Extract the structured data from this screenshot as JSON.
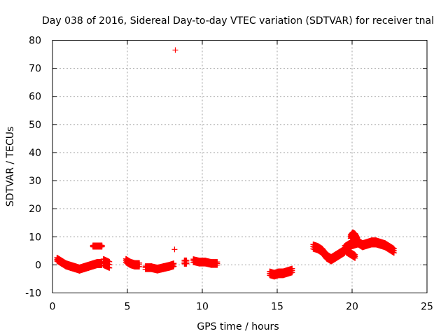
{
  "chart_data": {
    "type": "scatter",
    "title": "Day 038 of 2016, Sidereal Day-to-day VTEC variation (SDTVAR) for receiver tnal",
    "xlabel": "GPS time / hours",
    "ylabel": "SDTVAR / TECUs",
    "xlim": [
      0,
      25
    ],
    "ylim": [
      -10,
      80
    ],
    "xticks": [
      "0",
      "5",
      "10",
      "15",
      "20",
      "25"
    ],
    "yticks": [
      "-10",
      "0",
      "10",
      "20",
      "30",
      "40",
      "50",
      "60",
      "70",
      "80"
    ],
    "grid": true,
    "marker": "+",
    "color": "#ff0000",
    "outliers": [
      {
        "x": 8.2,
        "y": 76.5
      },
      {
        "x": 8.15,
        "y": 5.5
      }
    ],
    "segments": [
      {
        "x": [
          0.3,
          0.6,
          0.9,
          1.2,
          1.5,
          1.8,
          2.1,
          2.4,
          2.7,
          3.0,
          3.3
        ],
        "y": [
          2,
          1,
          0,
          -0.5,
          -1,
          -1.5,
          -1,
          -0.5,
          0,
          0.5,
          0.5
        ],
        "spread": 1.2
      },
      {
        "x": [
          2.7,
          2.9,
          3.1,
          3.3
        ],
        "y": [
          6.7,
          6.7,
          6.7,
          6.7
        ],
        "spread": 0.5
      },
      {
        "x": [
          3.4,
          3.6,
          3.8
        ],
        "y": [
          1,
          0.5,
          0
        ],
        "spread": 2.2
      },
      {
        "x": [
          4.9,
          5.2,
          5.5,
          5.8
        ],
        "y": [
          1.5,
          0.5,
          0,
          0
        ],
        "spread": 1.3
      },
      {
        "x": [
          6.2,
          6.6,
          7.0,
          7.4,
          7.8,
          8.1
        ],
        "y": [
          -1,
          -1,
          -1.5,
          -1,
          -0.5,
          0
        ],
        "spread": 1.1
      },
      {
        "x": [
          8.8,
          8.95
        ],
        "y": [
          1,
          1
        ],
        "spread": 1.2
      },
      {
        "x": [
          9.4,
          9.8,
          10.2,
          10.6,
          11.0
        ],
        "y": [
          1.5,
          1,
          1,
          0.5,
          0.5
        ],
        "spread": 1.1
      },
      {
        "x": [
          14.5,
          14.8,
          15.1,
          15.4,
          15.7,
          16.0
        ],
        "y": [
          -3,
          -3.5,
          -3,
          -3,
          -2.5,
          -2
        ],
        "spread": 1.4
      },
      {
        "x": [
          17.4,
          17.7,
          18.0,
          18.3,
          18.6,
          18.9,
          19.2,
          19.5
        ],
        "y": [
          6.5,
          6,
          5,
          3,
          2,
          3,
          4,
          5
        ],
        "spread": 1.6
      },
      {
        "x": [
          19.5,
          19.8,
          20.1,
          20.4,
          20.7,
          21.0,
          21.3,
          21.6,
          21.9,
          22.2,
          22.5,
          22.8
        ],
        "y": [
          6,
          7,
          7.5,
          8,
          7,
          7.5,
          8,
          8,
          7.5,
          7,
          6,
          5
        ],
        "spread": 1.5
      },
      {
        "x": [
          19.9,
          20.05,
          20.2,
          20.35
        ],
        "y": [
          10,
          11,
          10.5,
          9
        ],
        "spread": 1.2
      },
      {
        "x": [
          19.6,
          19.9,
          20.2
        ],
        "y": [
          5,
          4,
          3
        ],
        "spread": 1.2
      }
    ]
  }
}
